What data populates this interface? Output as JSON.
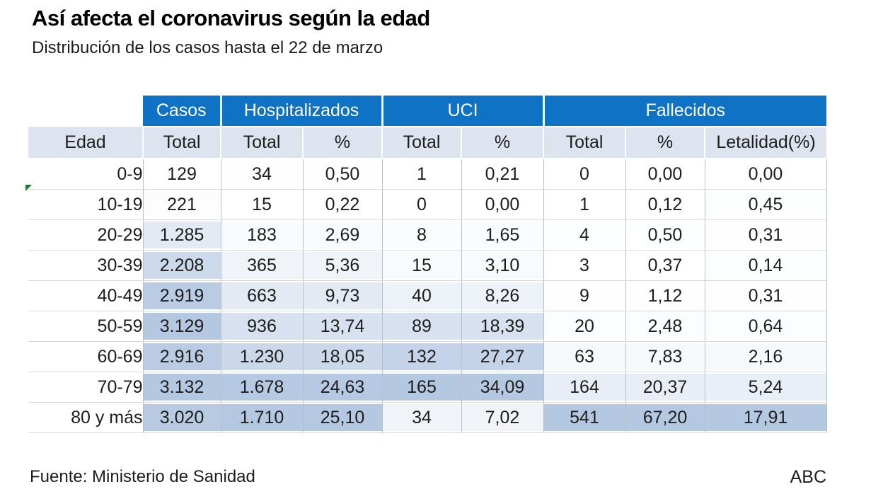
{
  "page": {
    "title": "Así afecta el coronavirus según la edad",
    "subtitle": "Distribución de los casos hasta el 22 de marzo",
    "source": "Fuente: Ministerio de Sanidad",
    "credit": "ABC"
  },
  "colors": {
    "header_blue": "#0e72c5",
    "header_text": "#ffffff",
    "subheader_bg": "#dde3ef",
    "heat_min": "#ffffff",
    "heat_max": "#b5c8e1",
    "text": "#1d1d1b",
    "row_line": "#d9d9d9",
    "col_line": "#b9c0cc",
    "flag_green": "#217a2e"
  },
  "chart_data": {
    "type": "table",
    "title": "Así afecta el coronavirus según la edad",
    "subtitle": "Distribución de los casos hasta el 22 de marzo",
    "source": "Ministerio de Sanidad",
    "age_column_header": "Edad",
    "group_headers": [
      {
        "label": "Casos",
        "span": 1
      },
      {
        "label": "Hospitalizados",
        "span": 2
      },
      {
        "label": "UCI",
        "span": 2
      },
      {
        "label": "Fallecidos",
        "span": 3
      }
    ],
    "sub_headers": [
      "Total",
      "Total",
      "%",
      "Total",
      "%",
      "Total",
      "%",
      "Letalidad(%)"
    ],
    "heatmap": {
      "scale": "per-column",
      "min_color": "#ffffff",
      "max_color": "#b5c8e1"
    },
    "rows": [
      {
        "age": "0-9",
        "values": [
          "129",
          "34",
          "0,50",
          "1",
          "0,21",
          "0",
          "0,00",
          "0,00"
        ]
      },
      {
        "age": "10-19",
        "values": [
          "221",
          "15",
          "0,22",
          "0",
          "0,00",
          "1",
          "0,12",
          "0,45"
        ]
      },
      {
        "age": "20-29",
        "values": [
          "1.285",
          "183",
          "2,69",
          "8",
          "1,65",
          "4",
          "0,50",
          "0,31"
        ]
      },
      {
        "age": "30-39",
        "values": [
          "2.208",
          "365",
          "5,36",
          "15",
          "3,10",
          "3",
          "0,37",
          "0,14"
        ]
      },
      {
        "age": "40-49",
        "values": [
          "2.919",
          "663",
          "9,73",
          "40",
          "8,26",
          "9",
          "1,12",
          "0,31"
        ]
      },
      {
        "age": "50-59",
        "values": [
          "3.129",
          "936",
          "13,74",
          "89",
          "18,39",
          "20",
          "2,48",
          "0,64"
        ]
      },
      {
        "age": "60-69",
        "values": [
          "2.916",
          "1.230",
          "18,05",
          "132",
          "27,27",
          "63",
          "7,83",
          "2,16"
        ]
      },
      {
        "age": "70-79",
        "values": [
          "3.132",
          "1.678",
          "24,63",
          "165",
          "34,09",
          "164",
          "20,37",
          "5,24"
        ]
      },
      {
        "age": "80 y más",
        "values": [
          "3.020",
          "1.710",
          "25,10",
          "34",
          "7,02",
          "541",
          "67,20",
          "17,91"
        ]
      }
    ]
  }
}
